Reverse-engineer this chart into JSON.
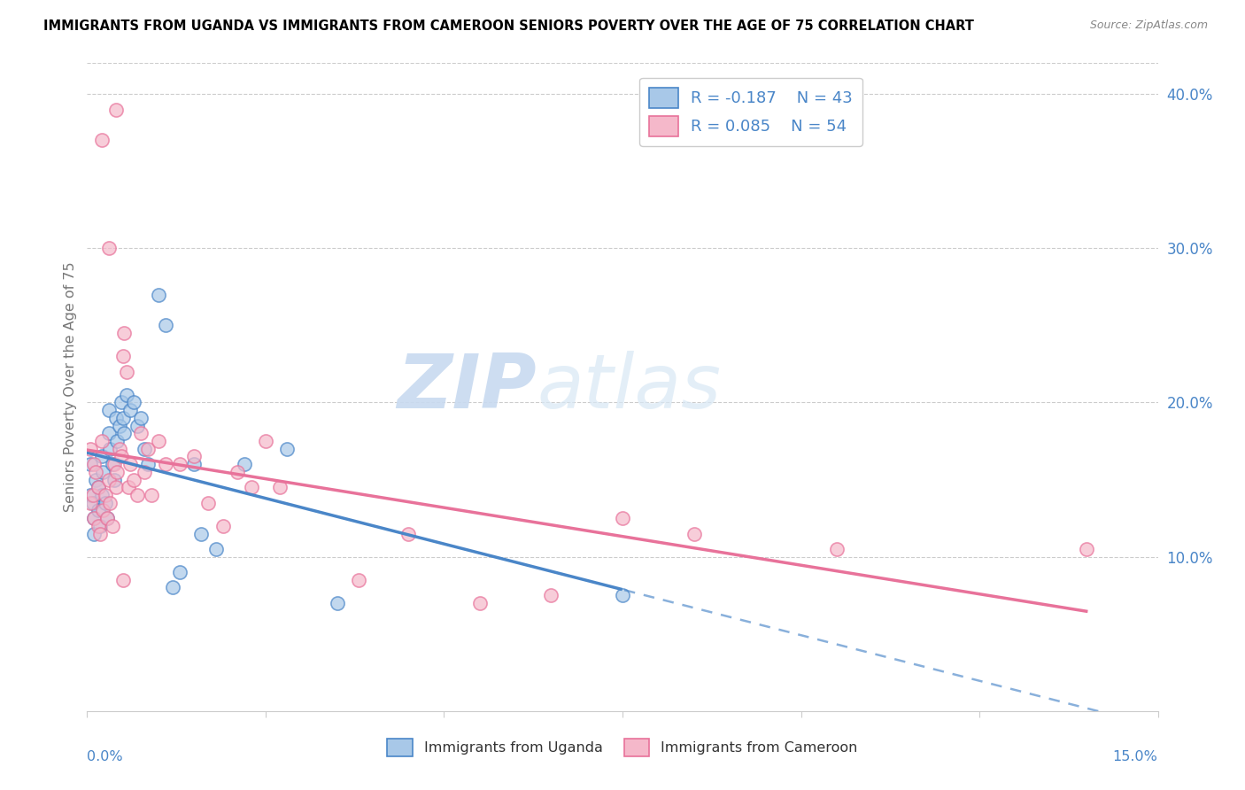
{
  "title": "IMMIGRANTS FROM UGANDA VS IMMIGRANTS FROM CAMEROON SENIORS POVERTY OVER THE AGE OF 75 CORRELATION CHART",
  "source": "Source: ZipAtlas.com",
  "ylabel": "Seniors Poverty Over the Age of 75",
  "xlim": [
    0.0,
    15.0
  ],
  "ylim": [
    0.0,
    42.0
  ],
  "yticks_right": [
    10.0,
    20.0,
    30.0,
    40.0
  ],
  "ytick_labels_right": [
    "10.0%",
    "20.0%",
    "30.0%",
    "40.0%"
  ],
  "legend_R1": "R = -0.187",
  "legend_N1": "N = 43",
  "legend_R2": "R = 0.085",
  "legend_N2": "N = 54",
  "color_uganda": "#a8c8e8",
  "color_cameroon": "#f5b8ca",
  "color_line_uganda": "#4a86c8",
  "color_line_cameroon": "#e8729a",
  "color_text_blue": "#4a86c8",
  "watermark_zip": "ZIP",
  "watermark_atlas": "atlas",
  "uganda_x": [
    0.05,
    0.05,
    0.08,
    0.1,
    0.1,
    0.12,
    0.15,
    0.15,
    0.18,
    0.2,
    0.2,
    0.22,
    0.25,
    0.28,
    0.3,
    0.3,
    0.32,
    0.35,
    0.38,
    0.4,
    0.42,
    0.45,
    0.48,
    0.5,
    0.52,
    0.55,
    0.6,
    0.65,
    0.7,
    0.75,
    0.8,
    0.85,
    1.0,
    1.1,
    1.2,
    1.3,
    1.5,
    1.6,
    1.8,
    2.2,
    2.8,
    3.5,
    7.5
  ],
  "uganda_y": [
    16.0,
    14.0,
    13.5,
    12.5,
    11.5,
    15.0,
    14.5,
    13.0,
    12.0,
    16.5,
    14.0,
    15.5,
    13.5,
    12.5,
    19.5,
    18.0,
    17.0,
    16.0,
    15.0,
    19.0,
    17.5,
    18.5,
    20.0,
    19.0,
    18.0,
    20.5,
    19.5,
    20.0,
    18.5,
    19.0,
    17.0,
    16.0,
    27.0,
    25.0,
    8.0,
    9.0,
    16.0,
    11.5,
    10.5,
    16.0,
    17.0,
    7.0,
    7.5
  ],
  "cameroon_x": [
    0.05,
    0.05,
    0.08,
    0.1,
    0.1,
    0.12,
    0.15,
    0.15,
    0.18,
    0.2,
    0.22,
    0.25,
    0.28,
    0.3,
    0.32,
    0.35,
    0.38,
    0.4,
    0.42,
    0.45,
    0.48,
    0.5,
    0.52,
    0.55,
    0.58,
    0.6,
    0.65,
    0.7,
    0.75,
    0.8,
    0.85,
    0.9,
    1.0,
    1.1,
    1.3,
    1.5,
    1.7,
    1.9,
    2.1,
    2.3,
    2.5,
    2.7,
    3.8,
    4.5,
    5.5,
    6.5,
    7.5,
    8.5,
    10.5,
    14.0,
    0.4,
    0.2,
    0.3,
    0.5
  ],
  "cameroon_y": [
    17.0,
    13.5,
    14.0,
    16.0,
    12.5,
    15.5,
    12.0,
    14.5,
    11.5,
    17.5,
    13.0,
    14.0,
    12.5,
    15.0,
    13.5,
    12.0,
    16.0,
    14.5,
    15.5,
    17.0,
    16.5,
    23.0,
    24.5,
    22.0,
    14.5,
    16.0,
    15.0,
    14.0,
    18.0,
    15.5,
    17.0,
    14.0,
    17.5,
    16.0,
    16.0,
    16.5,
    13.5,
    12.0,
    15.5,
    14.5,
    17.5,
    14.5,
    8.5,
    11.5,
    7.0,
    7.5,
    12.5,
    11.5,
    10.5,
    10.5,
    39.0,
    37.0,
    30.0,
    8.5
  ]
}
